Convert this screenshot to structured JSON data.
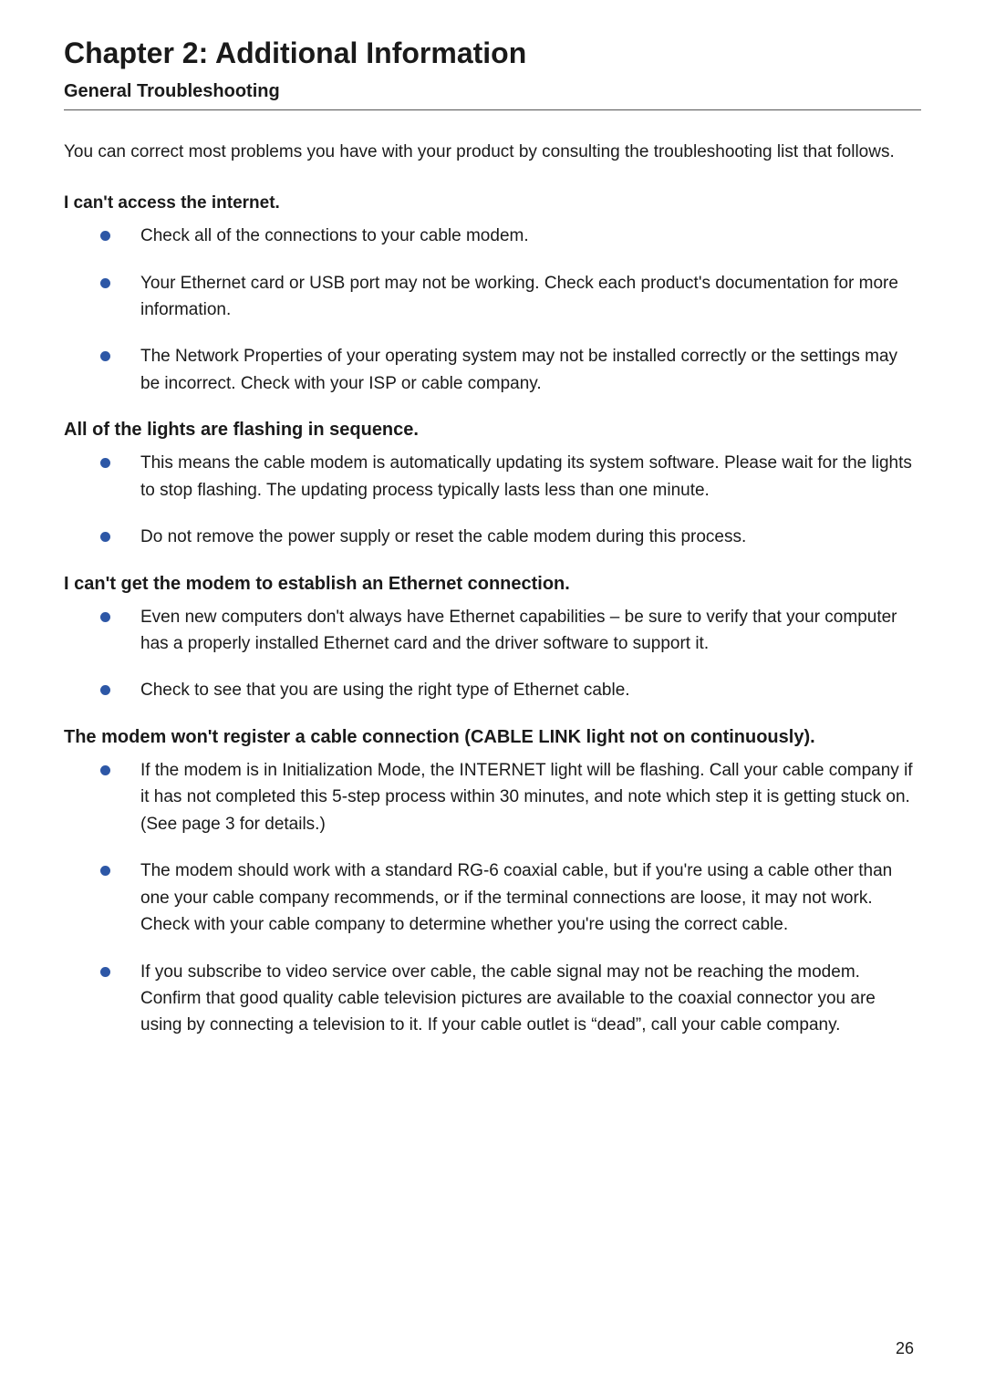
{
  "chapter_title": "Chapter 2: Additional Information",
  "section_title": "General Troubleshooting",
  "intro": "You can correct most problems you have with your product by consulting the troubleshooting list that follows.",
  "page_number": "26",
  "bullet_color": "#2d57a6",
  "groups": [
    {
      "heading": "I can't access the internet.",
      "heading_class": "sub-heading",
      "items": [
        "Check all of the connections to your cable modem.",
        "Your Ethernet card or USB port may not be working. Check each product's documentation for more information.",
        "The Network Properties of your operating system may not be installed correctly or the settings may be incorrect. Check with your ISP or cable company."
      ]
    },
    {
      "heading": "All of the lights are flashing in sequence.",
      "heading_class": "sub-heading-lg",
      "items": [
        "This means the cable modem is automatically updating its system software. Please wait for the lights to stop flashing. The updating process typically lasts less than one minute.",
        "Do not remove the power supply or reset the cable modem during this process."
      ]
    },
    {
      "heading": "I can't get the modem to establish an Ethernet connection.",
      "heading_class": "sub-heading-lg",
      "items": [
        "Even new computers don't always have Ethernet capabilities – be sure to verify that your computer has a properly installed Ethernet card and the driver software to support it.",
        "Check to see that you are using the right type of Ethernet cable."
      ]
    },
    {
      "heading": "The modem won't register a cable connection (CABLE LINK light not on continuously).",
      "heading_class": "sub-heading-lg",
      "items": [
        "If the modem is in Initialization Mode, the INTERNET light will be flashing. Call your cable company if it has not completed this 5-step process within 30 minutes, and note which step it is getting stuck on. (See page 3 for details.)",
        "The modem should work with a standard RG-6 coaxial cable, but if you're using a cable other than one your cable company recommends, or if the terminal connections are loose, it may not work. Check with your cable company to determine whether you're using the correct cable.",
        "If you subscribe to video service over cable, the cable signal may not be reaching the modem. Confirm that good quality cable television pictures are available to the coaxial connector you are using by connecting a television to it. If your cable outlet is “dead”, call your cable company."
      ]
    }
  ]
}
